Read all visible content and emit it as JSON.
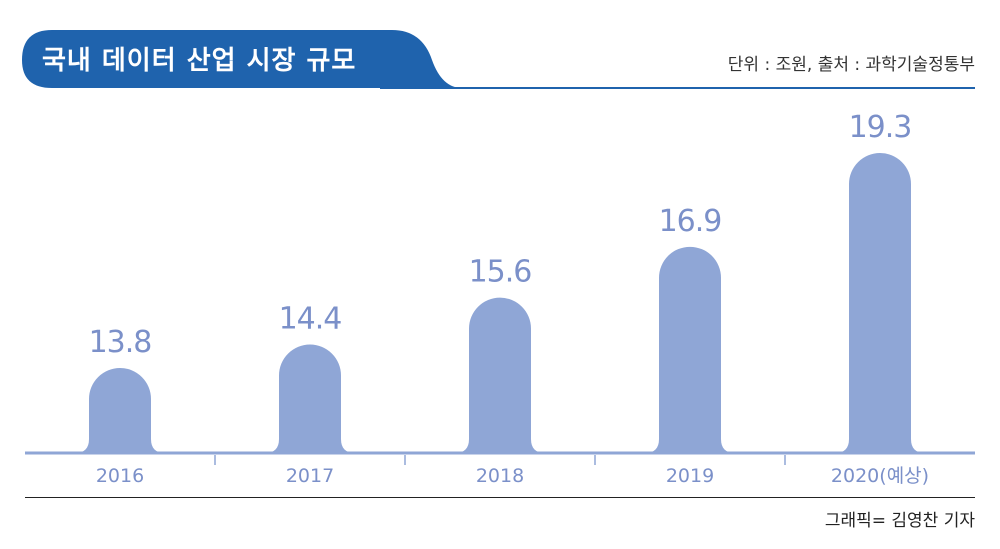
{
  "header": {
    "title": "국내 데이터 산업 시장 규모",
    "meta": "단위 : 조원, 출처 : 과학기술정통부"
  },
  "footer": {
    "credit": "그래픽= 김영찬 기자"
  },
  "colors": {
    "title_bg": "#1f63ad",
    "bar": "#8fa6d6",
    "value_label": "#7b90c9",
    "axis": "#8fa6d6",
    "tick_label": "#7b90c9"
  },
  "chart_data": {
    "type": "bar",
    "title": "국내 데이터 산업 시장 규모",
    "unit": "조원",
    "categories": [
      "2016",
      "2017",
      "2018",
      "2019",
      "2020(예상)"
    ],
    "values": [
      13.8,
      14.4,
      15.6,
      16.9,
      19.3
    ],
    "value_labels": [
      "13.8",
      "14.4",
      "15.6",
      "16.9",
      "19.3"
    ],
    "grid": false
  }
}
